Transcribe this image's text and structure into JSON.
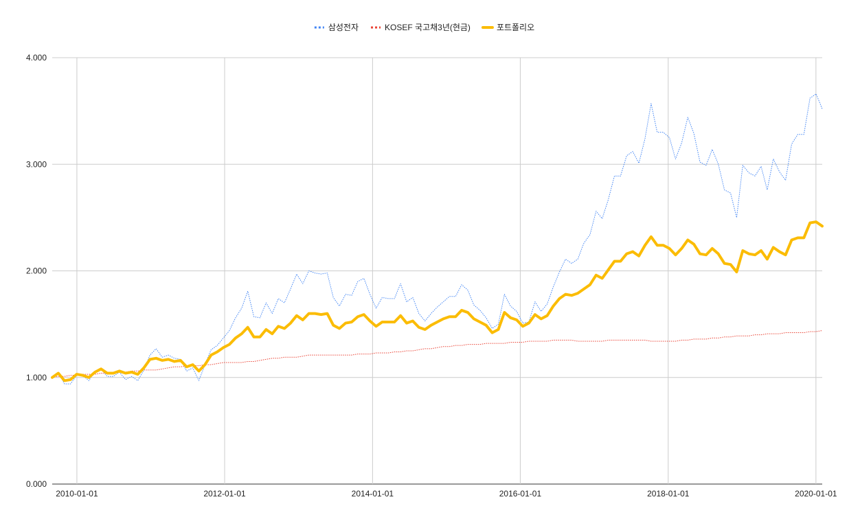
{
  "chart_data": {
    "type": "line",
    "title": "",
    "xlabel": "",
    "ylabel": "",
    "ylim": [
      0,
      4
    ],
    "grid": true,
    "legend_position": "top-center",
    "y_ticks": [
      "0.000",
      "1.000",
      "2.000",
      "3.000",
      "4.000"
    ],
    "x_ticks": [
      "2010-01-01",
      "2012-01-01",
      "2014-01-01",
      "2016-01-01",
      "2018-01-01",
      "2020-01-01"
    ],
    "x_tick_positions": [
      "2010-01-01",
      "2012-01-01",
      "2014-01-01",
      "2016-01-01",
      "2018-01-01",
      "2020-01-01"
    ],
    "x_range": [
      "2009-09-01",
      "2020-02-01"
    ],
    "series": [
      {
        "name": "삼성전자",
        "color": "#4285f4",
        "style": "dotted",
        "values": [
          1.0,
          1.05,
          0.94,
          0.94,
          1.02,
          1.02,
          0.97,
          1.06,
          1.08,
          1.01,
          1.01,
          1.05,
          0.98,
          1.01,
          0.97,
          1.07,
          1.21,
          1.27,
          1.19,
          1.21,
          1.18,
          1.17,
          1.06,
          1.09,
          0.97,
          1.12,
          1.26,
          1.3,
          1.37,
          1.44,
          1.56,
          1.65,
          1.81,
          1.57,
          1.56,
          1.7,
          1.6,
          1.74,
          1.7,
          1.83,
          1.97,
          1.88,
          2.0,
          1.98,
          1.97,
          1.98,
          1.75,
          1.67,
          1.78,
          1.77,
          1.9,
          1.93,
          1.78,
          1.65,
          1.75,
          1.74,
          1.74,
          1.88,
          1.71,
          1.75,
          1.6,
          1.53,
          1.6,
          1.66,
          1.71,
          1.76,
          1.76,
          1.87,
          1.82,
          1.68,
          1.63,
          1.56,
          1.46,
          1.5,
          1.78,
          1.67,
          1.62,
          1.51,
          1.52,
          1.71,
          1.62,
          1.69,
          1.85,
          1.99,
          2.11,
          2.07,
          2.11,
          2.26,
          2.34,
          2.56,
          2.49,
          2.67,
          2.89,
          2.89,
          3.08,
          3.12,
          3.01,
          3.24,
          3.57,
          3.3,
          3.3,
          3.25,
          3.05,
          3.2,
          3.44,
          3.29,
          3.02,
          2.99,
          3.14,
          3.0,
          2.76,
          2.73,
          2.5,
          2.99,
          2.92,
          2.89,
          2.98,
          2.76,
          3.05,
          2.93,
          2.85,
          3.19,
          3.28,
          3.28,
          3.62,
          3.66,
          3.52
        ]
      },
      {
        "name": "KOSEF 국고채3년(현금)",
        "color": "#ea4335",
        "style": "dotted",
        "values": [
          1.0,
          1.01,
          1.01,
          1.02,
          1.02,
          1.03,
          1.03,
          1.03,
          1.04,
          1.04,
          1.04,
          1.05,
          1.05,
          1.06,
          1.06,
          1.07,
          1.07,
          1.07,
          1.08,
          1.09,
          1.1,
          1.1,
          1.11,
          1.11,
          1.11,
          1.12,
          1.12,
          1.13,
          1.14,
          1.14,
          1.14,
          1.14,
          1.15,
          1.15,
          1.16,
          1.17,
          1.18,
          1.18,
          1.19,
          1.19,
          1.19,
          1.2,
          1.21,
          1.21,
          1.21,
          1.21,
          1.21,
          1.21,
          1.21,
          1.21,
          1.22,
          1.22,
          1.22,
          1.23,
          1.23,
          1.23,
          1.24,
          1.24,
          1.25,
          1.25,
          1.26,
          1.27,
          1.27,
          1.28,
          1.29,
          1.29,
          1.3,
          1.3,
          1.31,
          1.31,
          1.31,
          1.32,
          1.32,
          1.32,
          1.32,
          1.33,
          1.33,
          1.33,
          1.34,
          1.34,
          1.34,
          1.34,
          1.35,
          1.35,
          1.35,
          1.35,
          1.34,
          1.34,
          1.34,
          1.34,
          1.34,
          1.35,
          1.35,
          1.35,
          1.35,
          1.35,
          1.35,
          1.35,
          1.34,
          1.34,
          1.34,
          1.34,
          1.34,
          1.35,
          1.35,
          1.36,
          1.36,
          1.36,
          1.37,
          1.37,
          1.38,
          1.38,
          1.39,
          1.39,
          1.39,
          1.4,
          1.4,
          1.41,
          1.41,
          1.41,
          1.42,
          1.42,
          1.42,
          1.42,
          1.43,
          1.43,
          1.44
        ]
      },
      {
        "name": "포트폴리오",
        "color": "#fbbc04",
        "style": "solid",
        "values": [
          1.0,
          1.04,
          0.97,
          0.98,
          1.03,
          1.02,
          1.0,
          1.05,
          1.08,
          1.04,
          1.04,
          1.06,
          1.04,
          1.05,
          1.03,
          1.09,
          1.17,
          1.18,
          1.16,
          1.17,
          1.15,
          1.16,
          1.1,
          1.12,
          1.06,
          1.12,
          1.21,
          1.24,
          1.28,
          1.31,
          1.37,
          1.41,
          1.47,
          1.38,
          1.38,
          1.45,
          1.41,
          1.48,
          1.46,
          1.51,
          1.58,
          1.54,
          1.6,
          1.6,
          1.59,
          1.6,
          1.49,
          1.46,
          1.51,
          1.52,
          1.57,
          1.59,
          1.53,
          1.48,
          1.52,
          1.52,
          1.52,
          1.58,
          1.51,
          1.53,
          1.47,
          1.45,
          1.49,
          1.52,
          1.55,
          1.57,
          1.57,
          1.63,
          1.61,
          1.55,
          1.52,
          1.49,
          1.42,
          1.45,
          1.61,
          1.56,
          1.54,
          1.48,
          1.51,
          1.59,
          1.55,
          1.58,
          1.67,
          1.74,
          1.78,
          1.77,
          1.79,
          1.83,
          1.87,
          1.96,
          1.93,
          2.01,
          2.09,
          2.09,
          2.16,
          2.18,
          2.14,
          2.24,
          2.32,
          2.24,
          2.24,
          2.21,
          2.15,
          2.21,
          2.29,
          2.25,
          2.16,
          2.15,
          2.21,
          2.16,
          2.07,
          2.06,
          1.99,
          2.19,
          2.16,
          2.15,
          2.19,
          2.11,
          2.22,
          2.18,
          2.15,
          2.29,
          2.31,
          2.31,
          2.45,
          2.46,
          2.42
        ]
      }
    ],
    "x_start": "2009-09-01",
    "x_step": "1 month"
  }
}
